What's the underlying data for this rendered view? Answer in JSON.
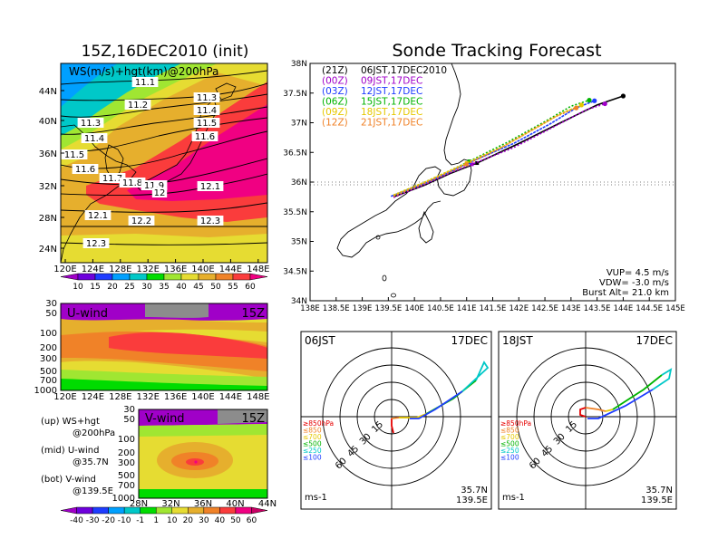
{
  "figure": {
    "left_title": "15Z,16DEC2010 (init)",
    "right_title": "Sonde Tracking Forecast"
  },
  "upper_map": {
    "label": "WS(m/s)+hgt(km)@200hPa",
    "lat_ticks": [
      "44N",
      "40N",
      "36N",
      "32N",
      "28N",
      "24N"
    ],
    "lon_ticks": [
      "120E",
      "124E",
      "128E",
      "132E",
      "136E",
      "140E",
      "144E",
      "148E"
    ],
    "contour_labels": [
      "11.1",
      "11.2",
      "11.3",
      "11.4",
      "11.5",
      "11.6",
      "11.3",
      "11.4",
      "11.5",
      "11.6",
      "11.7",
      "11.8",
      "11.9",
      "12",
      "12.1",
      "12.1",
      "12.2",
      "12.3",
      "12.3"
    ],
    "colorbar_ticks": [
      "10",
      "15",
      "20",
      "25",
      "30",
      "35",
      "40",
      "45",
      "50",
      "55",
      "60"
    ],
    "colorbar_colors": [
      "#a000c8",
      "#6e00dc",
      "#1e3cff",
      "#00a0ff",
      "#00c8c8",
      "#00dc00",
      "#a0e632",
      "#e6dc32",
      "#e6af2d",
      "#f08228",
      "#fa3c3c",
      "#f00082"
    ]
  },
  "u_section": {
    "label": "U-wind",
    "time": "15Z",
    "y_ticks": [
      "30",
      "50",
      "100",
      "200",
      "300",
      "500",
      "700",
      "1000"
    ],
    "x_ticks": [
      "120E",
      "124E",
      "128E",
      "132E",
      "136E",
      "140E",
      "144E",
      "148E"
    ]
  },
  "v_section": {
    "label": "V-wind",
    "time": "15Z",
    "y_ticks": [
      "30",
      "50",
      "100",
      "200",
      "300",
      "500",
      "700",
      "1000"
    ],
    "x_ticks": [
      "28N",
      "32N",
      "36N",
      "40N",
      "44N"
    ],
    "colorbar_ticks": [
      "-40",
      "-30",
      "-20",
      "-10",
      "-1",
      "1",
      "10",
      "20",
      "30",
      "40",
      "50",
      "60"
    ],
    "colorbar_colors": [
      "#a000c8",
      "#6e00dc",
      "#1e3cff",
      "#00a0ff",
      "#00c8c8",
      "#00dc00",
      "#a0e632",
      "#e6dc32",
      "#e6af2d",
      "#f08228",
      "#fa3c3c",
      "#f00082",
      "#c80064"
    ]
  },
  "legend_notes": [
    {
      "head": "(up) WS+hgt",
      "sub": "@200hPa"
    },
    {
      "head": "(mid) U-wind",
      "sub": "@35.7N"
    },
    {
      "head": "(bot) V-wind",
      "sub": "@139.5E"
    }
  ],
  "track_map": {
    "lat_ticks": [
      "38N",
      "37.5N",
      "37N",
      "36.5N",
      "36N",
      "35.5N",
      "35N",
      "34.5N",
      "34N"
    ],
    "lon_ticks": [
      "138E",
      "138.5E",
      "139E",
      "139.5E",
      "140E",
      "140.5E",
      "141E",
      "141.5E",
      "142E",
      "142.5E",
      "143E",
      "143.5E",
      "144E",
      "144.5E",
      "145E"
    ],
    "runs": [
      {
        "init": "(21Z)",
        "launch": "06JST,17DEC2010",
        "color": "#000000"
      },
      {
        "init": "(00Z)",
        "launch": "09JST,17DEC",
        "color": "#a000c8"
      },
      {
        "init": "(03Z)",
        "launch": "12JST,17DEC",
        "color": "#1e3cff"
      },
      {
        "init": "(06Z)",
        "launch": "15JST,17DEC",
        "color": "#00b400"
      },
      {
        "init": "(09Z)",
        "launch": "18JST,17DEC",
        "color": "#e6c800"
      },
      {
        "init": "(12Z)",
        "launch": "21JST,17DEC",
        "color": "#f08228"
      }
    ],
    "params": [
      "VUP= 4.5 m/s",
      "VDW= -3.0 m/s",
      "Burst Alt= 21.0 km"
    ]
  },
  "hodographs": [
    {
      "time": "06JST",
      "date": "17DEC",
      "ring_labels": [
        "15",
        "30",
        "45",
        "60"
      ],
      "coords": [
        "35.7N",
        "139.5E"
      ],
      "units": "ms-1",
      "levels": [
        {
          "label": "≥850hPa",
          "color": "#e60000"
        },
        {
          "label": "≤850",
          "color": "#f08228"
        },
        {
          "label": "≤700",
          "color": "#e6c800"
        },
        {
          "label": "≤500",
          "color": "#00b400"
        },
        {
          "label": "≤250",
          "color": "#00c8c8"
        },
        {
          "label": "≤100",
          "color": "#1e3cff"
        }
      ]
    },
    {
      "time": "18JST",
      "date": "17DEC",
      "ring_labels": [
        "15",
        "30",
        "45",
        "60"
      ],
      "coords": [
        "35.7N",
        "139.5E"
      ],
      "units": "ms-1",
      "levels": [
        {
          "label": "≥850hPa",
          "color": "#e60000"
        },
        {
          "label": "≤850",
          "color": "#f08228"
        },
        {
          "label": "≤700",
          "color": "#e6c800"
        },
        {
          "label": "≤500",
          "color": "#00b400"
        },
        {
          "label": "≤250",
          "color": "#00c8c8"
        },
        {
          "label": "≤100",
          "color": "#1e3cff"
        }
      ]
    }
  ],
  "chart_data": [
    {
      "type": "heatmap",
      "title": "WS(m/s)+hgt(km)@200hPa",
      "xlabel": "",
      "ylabel": "",
      "xlim": [
        120,
        150
      ],
      "ylim": [
        22,
        48
      ],
      "contour_labels": [
        "11.1",
        "11.2",
        "11.3",
        "11.4",
        "11.5",
        "11.6",
        "11.7",
        "11.8",
        "11.9",
        "12",
        "12.1",
        "12.2",
        "12.3"
      ],
      "colorbar": [
        10,
        15,
        20,
        25,
        30,
        35,
        40,
        45,
        50,
        55,
        60
      ]
    },
    {
      "type": "heatmap",
      "title": "U-wind 15Z",
      "x_ticks": [
        "120E",
        "124E",
        "128E",
        "132E",
        "136E",
        "140E",
        "144E",
        "148E"
      ],
      "y_ticks": [
        "30",
        "50",
        "100",
        "200",
        "300",
        "500",
        "700",
        "1000"
      ]
    },
    {
      "type": "heatmap",
      "title": "V-wind 15Z",
      "x_ticks": [
        "28N",
        "32N",
        "36N",
        "40N",
        "44N"
      ],
      "y_ticks": [
        "30",
        "50",
        "100",
        "200",
        "300",
        "500",
        "700",
        "1000"
      ],
      "colorbar": [
        -40,
        -30,
        -20,
        -10,
        -1,
        1,
        10,
        20,
        30,
        40,
        50,
        60
      ]
    },
    {
      "type": "line",
      "title": "Sonde Tracking Forecast",
      "xlim": [
        138,
        145
      ],
      "ylim": [
        34,
        38
      ],
      "series": [
        {
          "name": "(21Z) 06JST,17DEC2010",
          "x": [
            139.6,
            140.2,
            140.7,
            141.2,
            142.0,
            142.8,
            143.5,
            144.0
          ],
          "y": [
            35.75,
            35.95,
            36.15,
            36.32,
            36.65,
            37.0,
            37.3,
            37.45
          ]
        },
        {
          "name": "(00Z) 09JST,17DEC",
          "x": [
            139.6,
            140.2,
            140.7,
            141.1,
            141.9,
            142.6,
            143.3,
            143.65
          ],
          "y": [
            35.74,
            35.96,
            36.16,
            36.3,
            36.58,
            36.9,
            37.22,
            37.32
          ]
        },
        {
          "name": "(03Z) 12JST,17DEC",
          "x": [
            139.55,
            140.2,
            140.7,
            141.05,
            141.9,
            142.6,
            143.1,
            143.45
          ],
          "y": [
            35.76,
            35.98,
            36.18,
            36.33,
            36.65,
            36.98,
            37.25,
            37.37
          ]
        },
        {
          "name": "(06Z) 15JST,17DEC",
          "x": [
            139.6,
            140.2,
            140.7,
            141.05,
            141.8,
            142.5,
            143.0,
            143.35
          ],
          "y": [
            35.78,
            36.0,
            36.2,
            36.35,
            36.68,
            37.02,
            37.28,
            37.38
          ]
        },
        {
          "name": "(09Z) 18JST,17DEC",
          "x": [
            139.6,
            140.2,
            140.7,
            141.0,
            141.7,
            142.3,
            142.8,
            143.2
          ],
          "y": [
            35.78,
            36.0,
            36.2,
            36.32,
            36.6,
            36.9,
            37.15,
            37.3
          ]
        },
        {
          "name": "(12Z) 21JST,17DEC",
          "x": [
            139.6,
            140.2,
            140.7,
            141.0,
            141.6,
            142.2,
            142.7,
            143.1
          ],
          "y": [
            35.76,
            35.98,
            36.18,
            36.3,
            36.55,
            36.85,
            37.1,
            37.25
          ]
        }
      ]
    }
  ]
}
